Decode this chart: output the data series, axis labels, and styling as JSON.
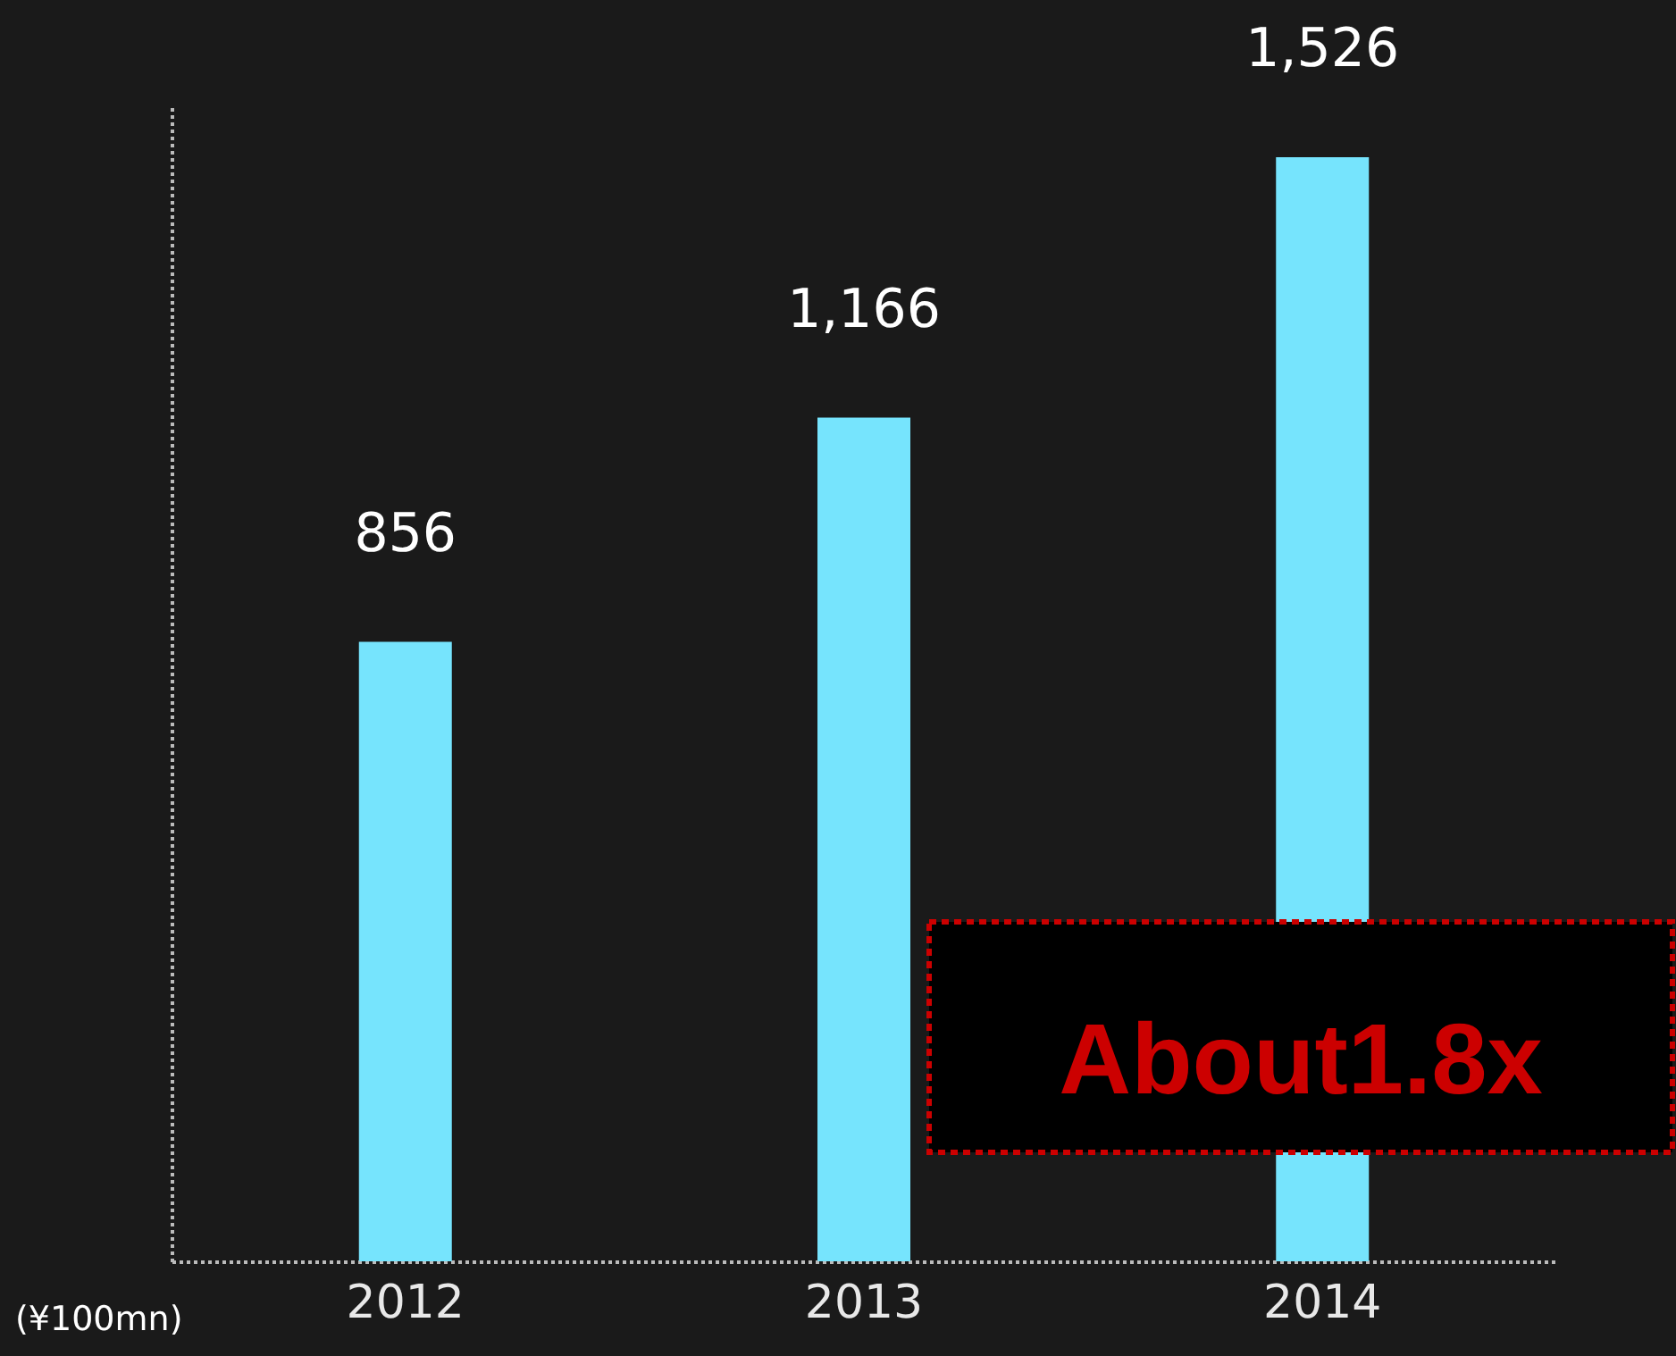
{
  "chart_data": {
    "type": "bar",
    "categories": [
      "2012",
      "2013",
      "2014"
    ],
    "values": [
      856,
      1166,
      1526
    ],
    "color": "#76e4fd",
    "ylim": [
      0,
      1595
    ],
    "ylabel": "(¥100mn)",
    "value_labels": [
      "856",
      "1,166",
      "1,526"
    ],
    "tick_labels": "x",
    "grid": false,
    "annotations": [
      "About1.8x"
    ]
  }
}
